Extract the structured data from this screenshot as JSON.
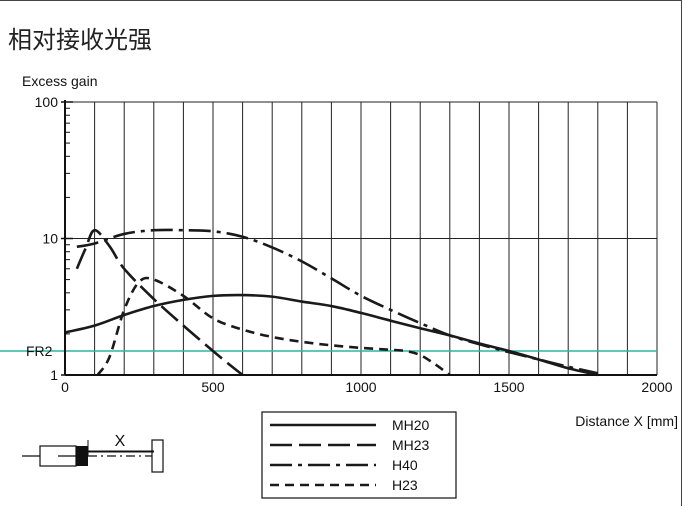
{
  "header": {
    "title": "相对接收光强"
  },
  "chart_data": {
    "type": "line",
    "ylabel": "Excess gain",
    "xlabel": "Distance X [mm]",
    "xlim": [
      0,
      2000
    ],
    "ylim": [
      1,
      100
    ],
    "y_scale": "log",
    "x_ticks": [
      0,
      500,
      1000,
      1500,
      2000
    ],
    "x_tick_labels": [
      "0",
      "500",
      "1000",
      "1500",
      "2000"
    ],
    "y_ticks": [
      1,
      10,
      100
    ],
    "y_tick_labels": [
      "1",
      "10",
      "100"
    ],
    "grid": true,
    "reference_line": {
      "label": "FR2",
      "y": 1.5,
      "color": "#2bb5a0"
    },
    "legend": {
      "placement": "bottom-center"
    },
    "series": [
      {
        "name": "MH20",
        "dash": "solid",
        "x": [
          0,
          100,
          200,
          300,
          400,
          500,
          600,
          700,
          800,
          900,
          1000,
          1100,
          1200,
          1300,
          1400,
          1500,
          1600,
          1700,
          1800
        ],
        "y": [
          2.05,
          2.3,
          2.75,
          3.2,
          3.55,
          3.8,
          3.85,
          3.75,
          3.45,
          3.2,
          2.85,
          2.5,
          2.2,
          1.95,
          1.7,
          1.5,
          1.3,
          1.12,
          1.0
        ]
      },
      {
        "name": "MH23",
        "dash": "long",
        "x": [
          40,
          70,
          100,
          150,
          200,
          300,
          400,
          500,
          550,
          600
        ],
        "y": [
          6.0,
          8.5,
          11.5,
          8.8,
          6.0,
          3.6,
          2.3,
          1.5,
          1.22,
          1.0
        ]
      },
      {
        "name": "H40",
        "dash": "dashdot",
        "x": [
          40,
          100,
          200,
          300,
          400,
          500,
          600,
          700,
          800,
          900,
          1000,
          1100,
          1200,
          1300,
          1400,
          1500,
          1600,
          1700,
          1800
        ],
        "y": [
          8.7,
          9.2,
          10.8,
          11.5,
          11.5,
          11.3,
          10.3,
          8.6,
          6.8,
          5.1,
          3.8,
          3.0,
          2.4,
          1.95,
          1.68,
          1.47,
          1.3,
          1.15,
          1.03
        ]
      },
      {
        "name": "H23",
        "dash": "short",
        "x": [
          110,
          150,
          200,
          250,
          300,
          400,
          500,
          600,
          700,
          800,
          900,
          1000,
          1100,
          1150,
          1200,
          1250,
          1300
        ],
        "y": [
          1.0,
          1.35,
          3.0,
          4.8,
          5.0,
          3.8,
          2.6,
          2.15,
          1.9,
          1.75,
          1.65,
          1.58,
          1.53,
          1.5,
          1.4,
          1.2,
          1.0
        ]
      }
    ]
  },
  "diagram": {
    "distance_label": "X"
  }
}
